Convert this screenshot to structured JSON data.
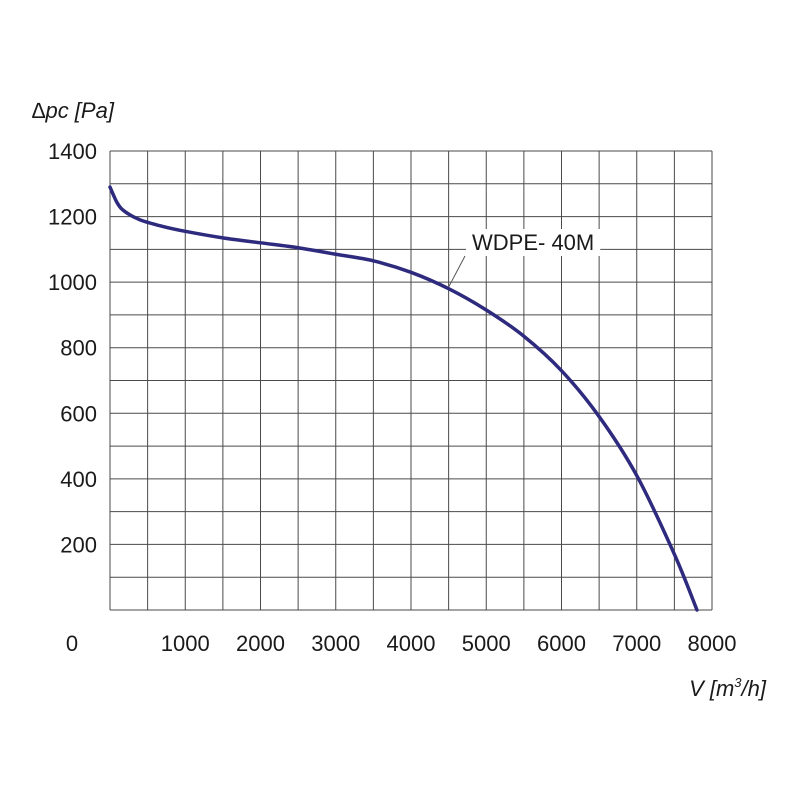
{
  "chart_data": {
    "type": "line",
    "title": "",
    "ylabel": "∆pc [Pa]",
    "xlabel_main": "V [m",
    "xlabel_sup": "3",
    "xlabel_end": "/h]",
    "xlim": [
      0,
      8000
    ],
    "ylim": [
      0,
      1400
    ],
    "x_grid_step": 500,
    "y_grid_step": 100,
    "grid": true,
    "xticks": [
      0,
      1000,
      2000,
      3000,
      4000,
      5000,
      6000,
      7000,
      8000
    ],
    "xtick_labels": [
      "0",
      "1000",
      "2000",
      "3000",
      "4000",
      "5000",
      "6000",
      "7000",
      "8000"
    ],
    "yticks": [
      200,
      400,
      600,
      800,
      1000,
      1200,
      1400
    ],
    "ytick_labels": [
      "200",
      "400",
      "600",
      "800",
      "1000",
      "1200",
      "1400"
    ],
    "series": [
      {
        "name": "WDPE- 40M",
        "color": "#2e2a7e",
        "x": [
          0,
          100,
          200,
          400,
          700,
          1000,
          1500,
          2000,
          2500,
          3000,
          3500,
          4000,
          4500,
          5000,
          5500,
          6000,
          6500,
          7000,
          7500,
          7800
        ],
        "y": [
          1290,
          1240,
          1215,
          1190,
          1170,
          1155,
          1135,
          1120,
          1105,
          1085,
          1065,
          1030,
          980,
          915,
          835,
          730,
          590,
          410,
          170,
          0
        ]
      }
    ],
    "label_anchor": {
      "x": 4500,
      "y": 985
    }
  }
}
